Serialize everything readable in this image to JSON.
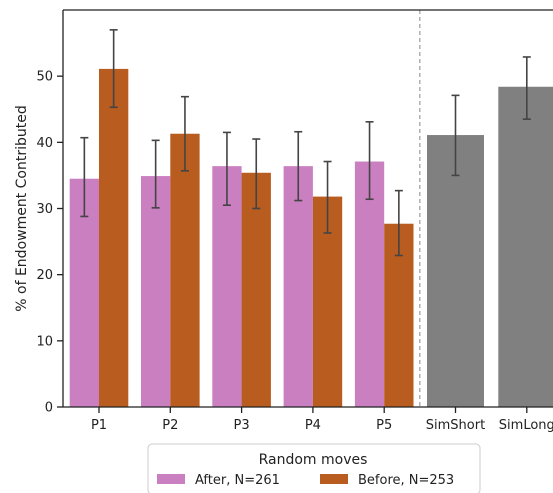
{
  "chart_data": {
    "type": "bar",
    "title": "",
    "xlabel": "",
    "ylabel": "% of Endowment Contributed",
    "ylim": [
      0,
      60
    ],
    "yticks": [
      0,
      10,
      20,
      30,
      40,
      50
    ],
    "grid": false,
    "categories": [
      "P1",
      "P2",
      "P3",
      "P4",
      "P5"
    ],
    "series": [
      {
        "name": "After, N=261",
        "color": "#c97fc0",
        "values": [
          34.5,
          34.9,
          36.4,
          36.4,
          37.1
        ],
        "err_low": [
          28.8,
          30.1,
          30.5,
          31.2,
          31.4
        ],
        "err_high": [
          40.7,
          40.3,
          41.5,
          41.6,
          43.1
        ]
      },
      {
        "name": "Before, N=253",
        "color": "#b85c1f",
        "values": [
          51.1,
          41.3,
          35.4,
          31.8,
          27.7
        ],
        "err_low": [
          45.3,
          35.7,
          30.0,
          26.3,
          22.9
        ],
        "err_high": [
          57.0,
          46.9,
          40.5,
          37.1,
          32.7
        ]
      }
    ],
    "sim_categories": [
      "SimShort",
      "SimLong"
    ],
    "sim_series": {
      "color": "#808080",
      "values": [
        41.1,
        48.4
      ],
      "err_low": [
        35.0,
        43.5
      ],
      "err_high": [
        47.1,
        52.9
      ]
    },
    "separator": "dashed vertical line between P5 and SimShort",
    "legend": {
      "title": "Random moves",
      "placement": "bottom-center",
      "entries": [
        "After, N=261",
        "Before, N=253"
      ]
    }
  }
}
